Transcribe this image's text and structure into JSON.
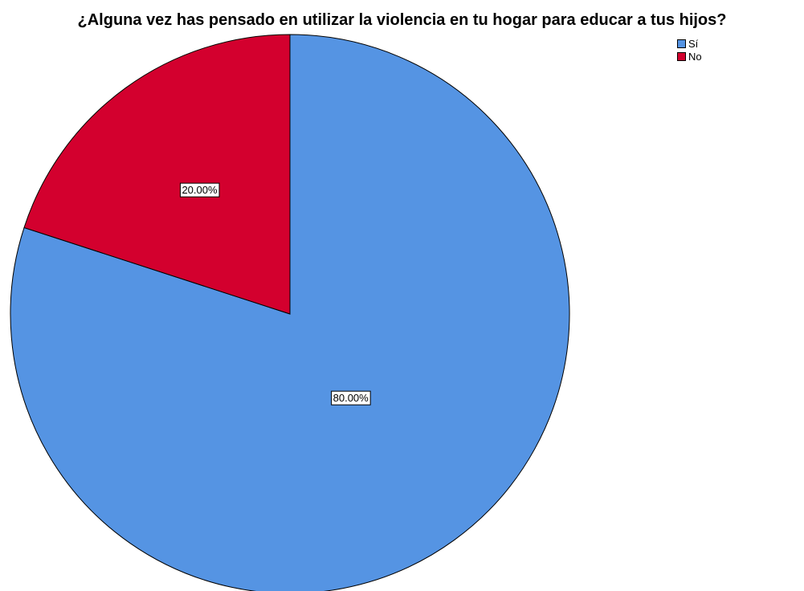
{
  "chart_data": {
    "type": "pie",
    "title": "¿Alguna vez has pensado en utilizar la violencia en tu hogar para educar a tus hijos?",
    "slices": [
      {
        "name": "Sí",
        "value": 80.0,
        "label": "80.00%",
        "color": "#5594e3"
      },
      {
        "name": "No",
        "value": 20.0,
        "label": "20.00%",
        "color": "#d3002e"
      }
    ],
    "legend": {
      "placement": "top-right",
      "entries": [
        "Sí",
        "No"
      ]
    },
    "start_angle": "12 o'clock",
    "direction": "clockwise"
  }
}
